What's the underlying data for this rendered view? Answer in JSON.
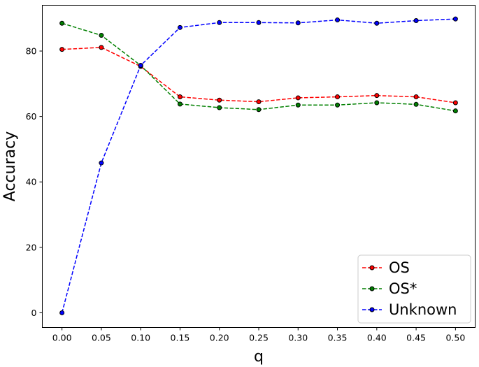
{
  "chart_data": {
    "type": "line",
    "title": "",
    "xlabel": "q",
    "ylabel": "Accuracy",
    "x": [
      0.0,
      0.05,
      0.1,
      0.15,
      0.2,
      0.25,
      0.3,
      0.35,
      0.4,
      0.45,
      0.5
    ],
    "x_tick_labels": [
      "0.00",
      "0.05",
      "0.10",
      "0.15",
      "0.20",
      "0.25",
      "0.30",
      "0.35",
      "0.40",
      "0.45",
      "0.50"
    ],
    "y_ticks": [
      0,
      20,
      40,
      60,
      80
    ],
    "y_tick_labels": [
      "0",
      "20",
      "40",
      "60",
      "80"
    ],
    "xlim": [
      -0.025,
      0.525
    ],
    "ylim": [
      -4.5,
      94
    ],
    "grid": false,
    "legend_position": "lower-right",
    "series": [
      {
        "name": "OS",
        "color": "#ff0000",
        "line_style": "dashed",
        "marker": "circle",
        "values": [
          80.5,
          81.1,
          75.3,
          66.0,
          65.0,
          64.5,
          65.7,
          66.0,
          66.4,
          66.0,
          64.2
        ]
      },
      {
        "name": "OS*",
        "color": "#008000",
        "line_style": "dashed",
        "marker": "circle",
        "values": [
          88.5,
          84.8,
          75.6,
          63.8,
          62.7,
          62.1,
          63.5,
          63.5,
          64.2,
          63.7,
          61.7
        ]
      },
      {
        "name": "Unknown",
        "color": "#0000ff",
        "line_style": "dashed",
        "marker": "circle",
        "values": [
          0.0,
          45.8,
          75.6,
          87.2,
          88.7,
          88.7,
          88.6,
          89.5,
          88.5,
          89.3,
          89.8
        ]
      }
    ]
  }
}
